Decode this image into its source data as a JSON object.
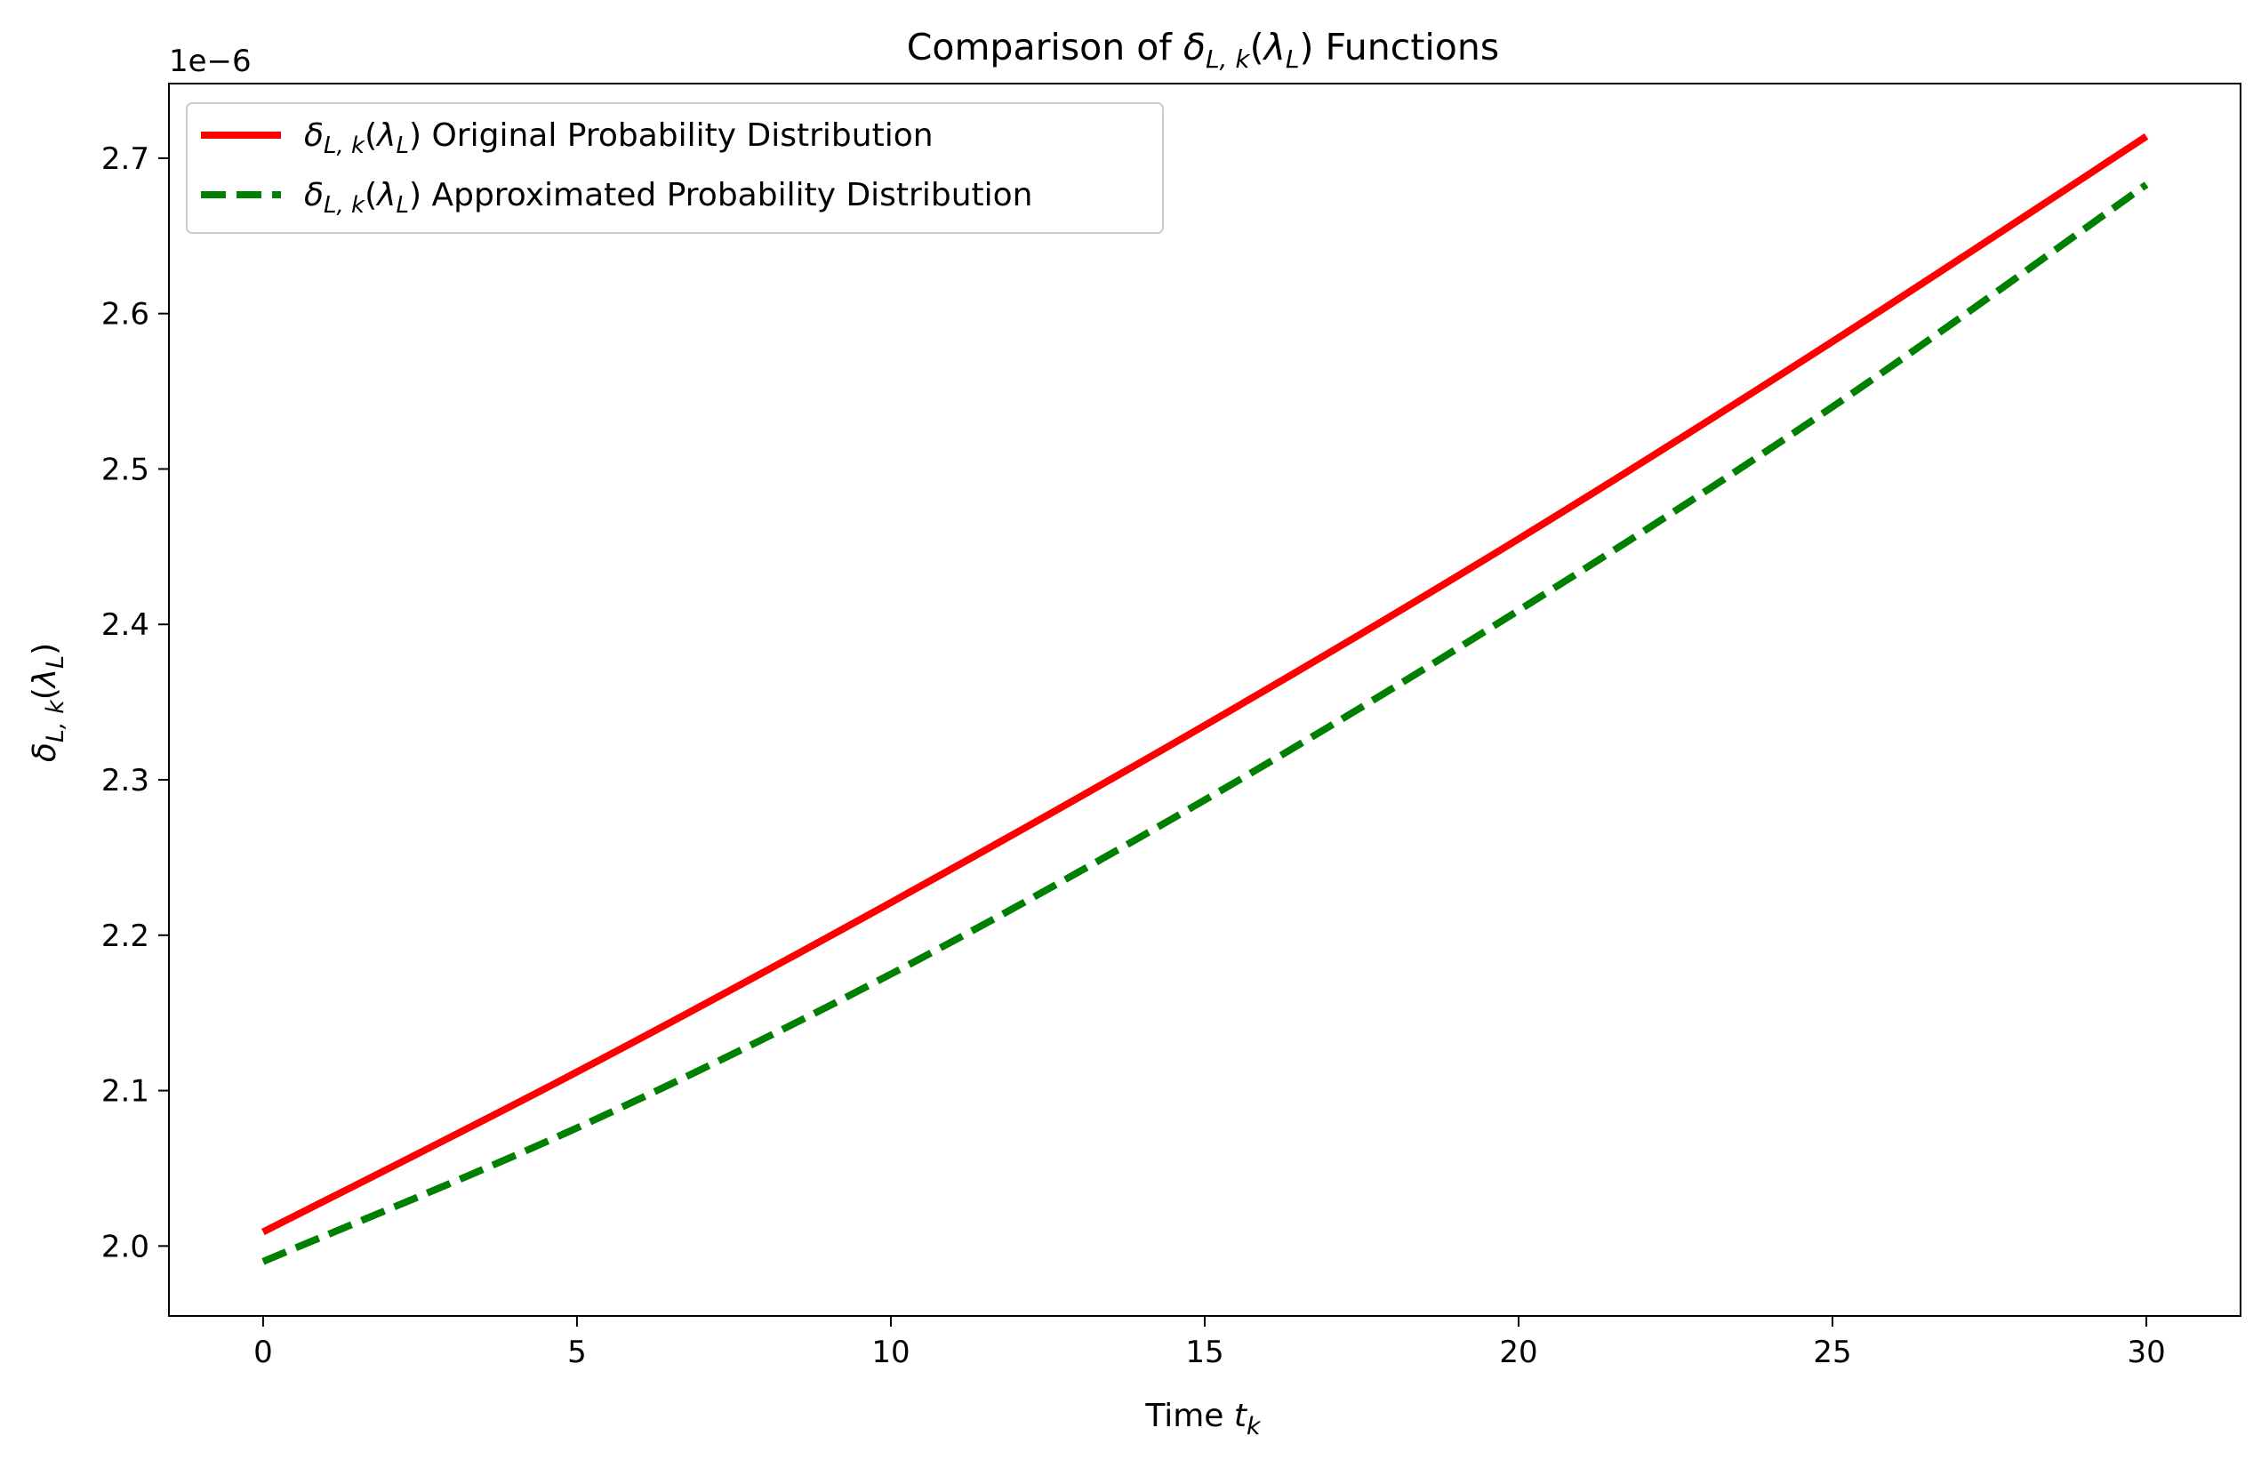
{
  "chart_data": {
    "type": "line",
    "title": {
      "pre": "Comparison of ",
      "sym": "δ",
      "sub": "L, k",
      "paren_open": "(",
      "lam": "λ",
      "lam_sub": "L",
      "paren_close": ")",
      "post": " Functions"
    },
    "xlabel": {
      "pre": "Time ",
      "sym": "t",
      "sub": "k"
    },
    "ylabel": {
      "sym": "δ",
      "sub": "L, k",
      "paren_open": "(",
      "lam": "λ",
      "lam_sub": "L",
      "paren_close": ")"
    },
    "y_offset_label": "1e−6",
    "x_ticks": [
      0,
      5,
      10,
      15,
      20,
      25,
      30
    ],
    "x_tick_labels": [
      "0",
      "5",
      "10",
      "15",
      "20",
      "25",
      "30"
    ],
    "y_ticks": [
      2.0,
      2.1,
      2.2,
      2.3,
      2.4,
      2.5,
      2.6,
      2.7
    ],
    "y_tick_labels": [
      "2.0",
      "2.1",
      "2.2",
      "2.3",
      "2.4",
      "2.5",
      "2.6",
      "2.7"
    ],
    "xlim": [
      -1.5,
      31.5
    ],
    "ylim": [
      1.955,
      2.748
    ],
    "grid": false,
    "legend_position": "top-left",
    "x": [
      0,
      5,
      10,
      15,
      20,
      25,
      30
    ],
    "series": [
      {
        "name": "δL,k(λL) Original Probability Distribution",
        "legend_label": {
          "sym": "δ",
          "sub": "L, k",
          "paren_open": "(",
          "lam": "λ",
          "lam_sub": "L",
          "paren_close": ")",
          "text": " Original Probability Distribution"
        },
        "color": "#ff0000",
        "style": "solid",
        "values": [
          2.009,
          2.112,
          2.221,
          2.335,
          2.455,
          2.582,
          2.714
        ]
      },
      {
        "name": "δL,k(λL) Approximated Probability Distribution",
        "legend_label": {
          "sym": "δ",
          "sub": "L, k",
          "paren_open": "(",
          "lam": "λ",
          "lam_sub": "L",
          "paren_close": ")",
          "text": " Approximated Probability Distribution"
        },
        "color": "#008000",
        "style": "dashed",
        "values": [
          1.99,
          2.076,
          2.175,
          2.287,
          2.409,
          2.54,
          2.683
        ]
      }
    ]
  }
}
